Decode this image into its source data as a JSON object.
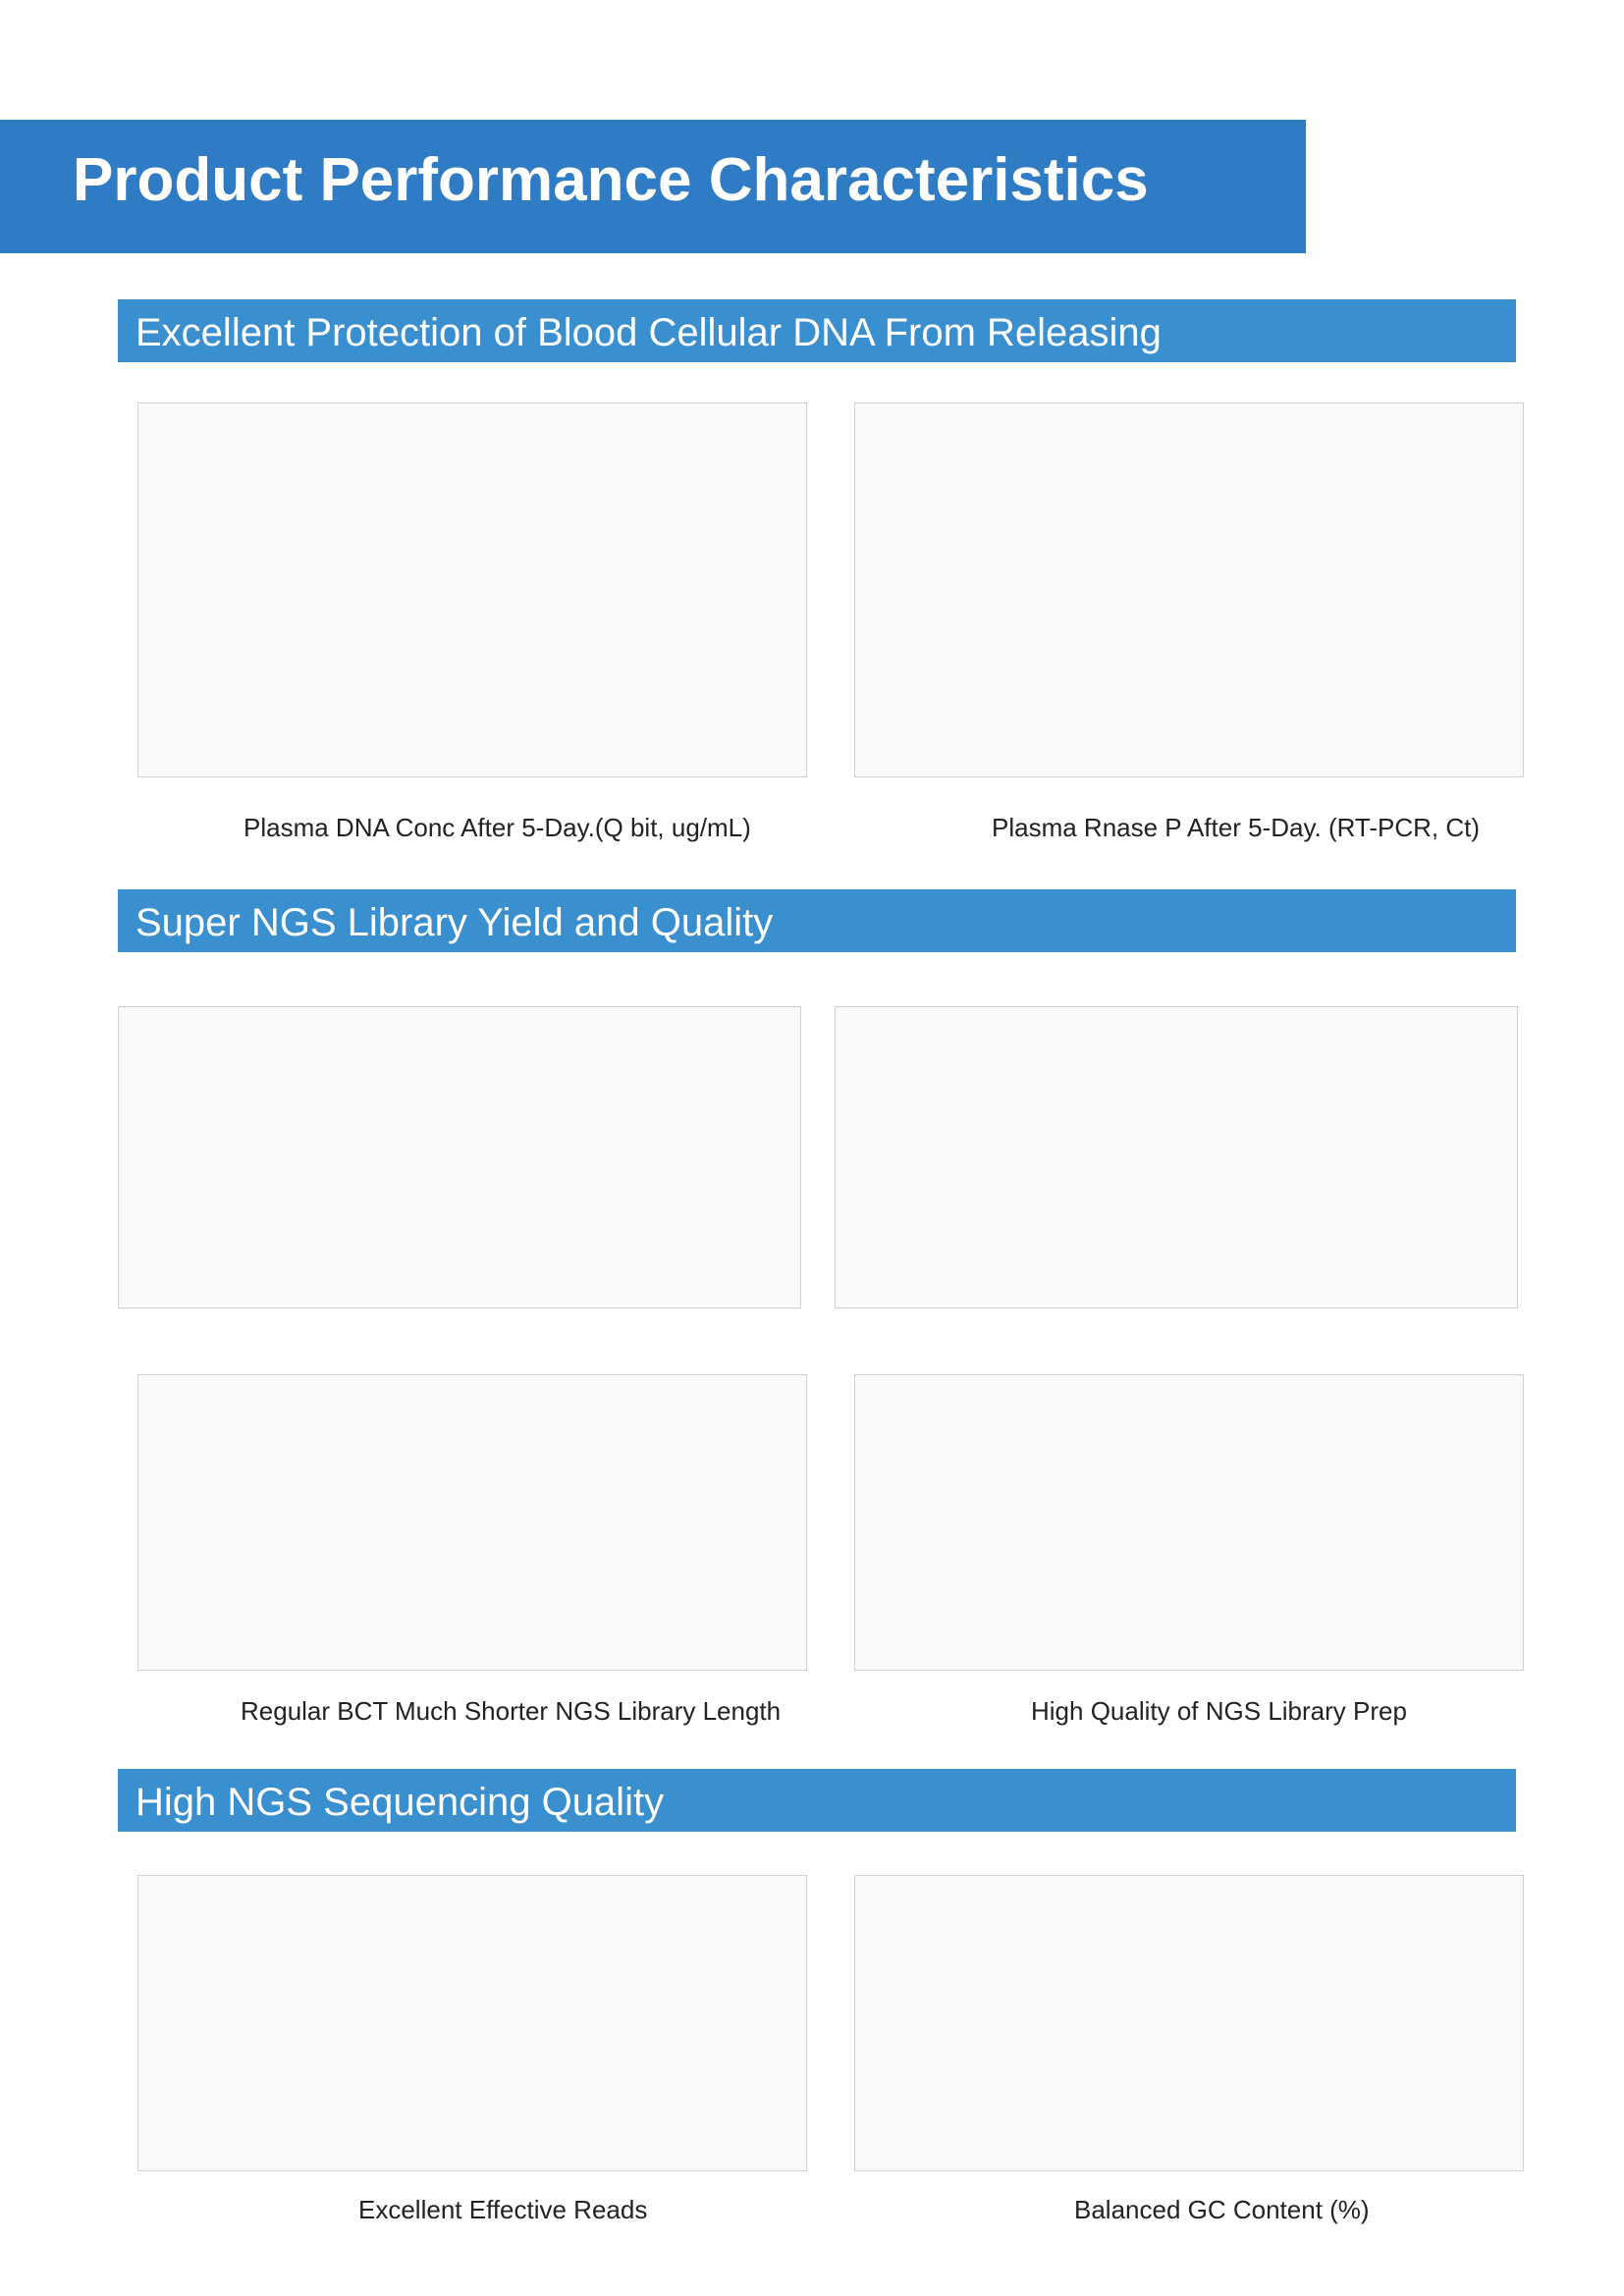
{
  "title": "Product Performance Characteristics",
  "sections": [
    "Excellent Protection of Blood Cellular DNA From Releasing",
    "Super NGS Library Yield and Quality",
    "High NGS Sequencing Quality"
  ],
  "captions": [
    "Plasma DNA Conc After 5-Day.(Q bit, ug/mL)",
    "Plasma Rnase P After 5-Day. (RT-PCR, Ct)",
    "Regular BCT Much Shorter NGS Library Length",
    "High Quality of NGS Library Prep",
    "Excellent Effective Reads",
    "Balanced GC Content (%)"
  ]
}
